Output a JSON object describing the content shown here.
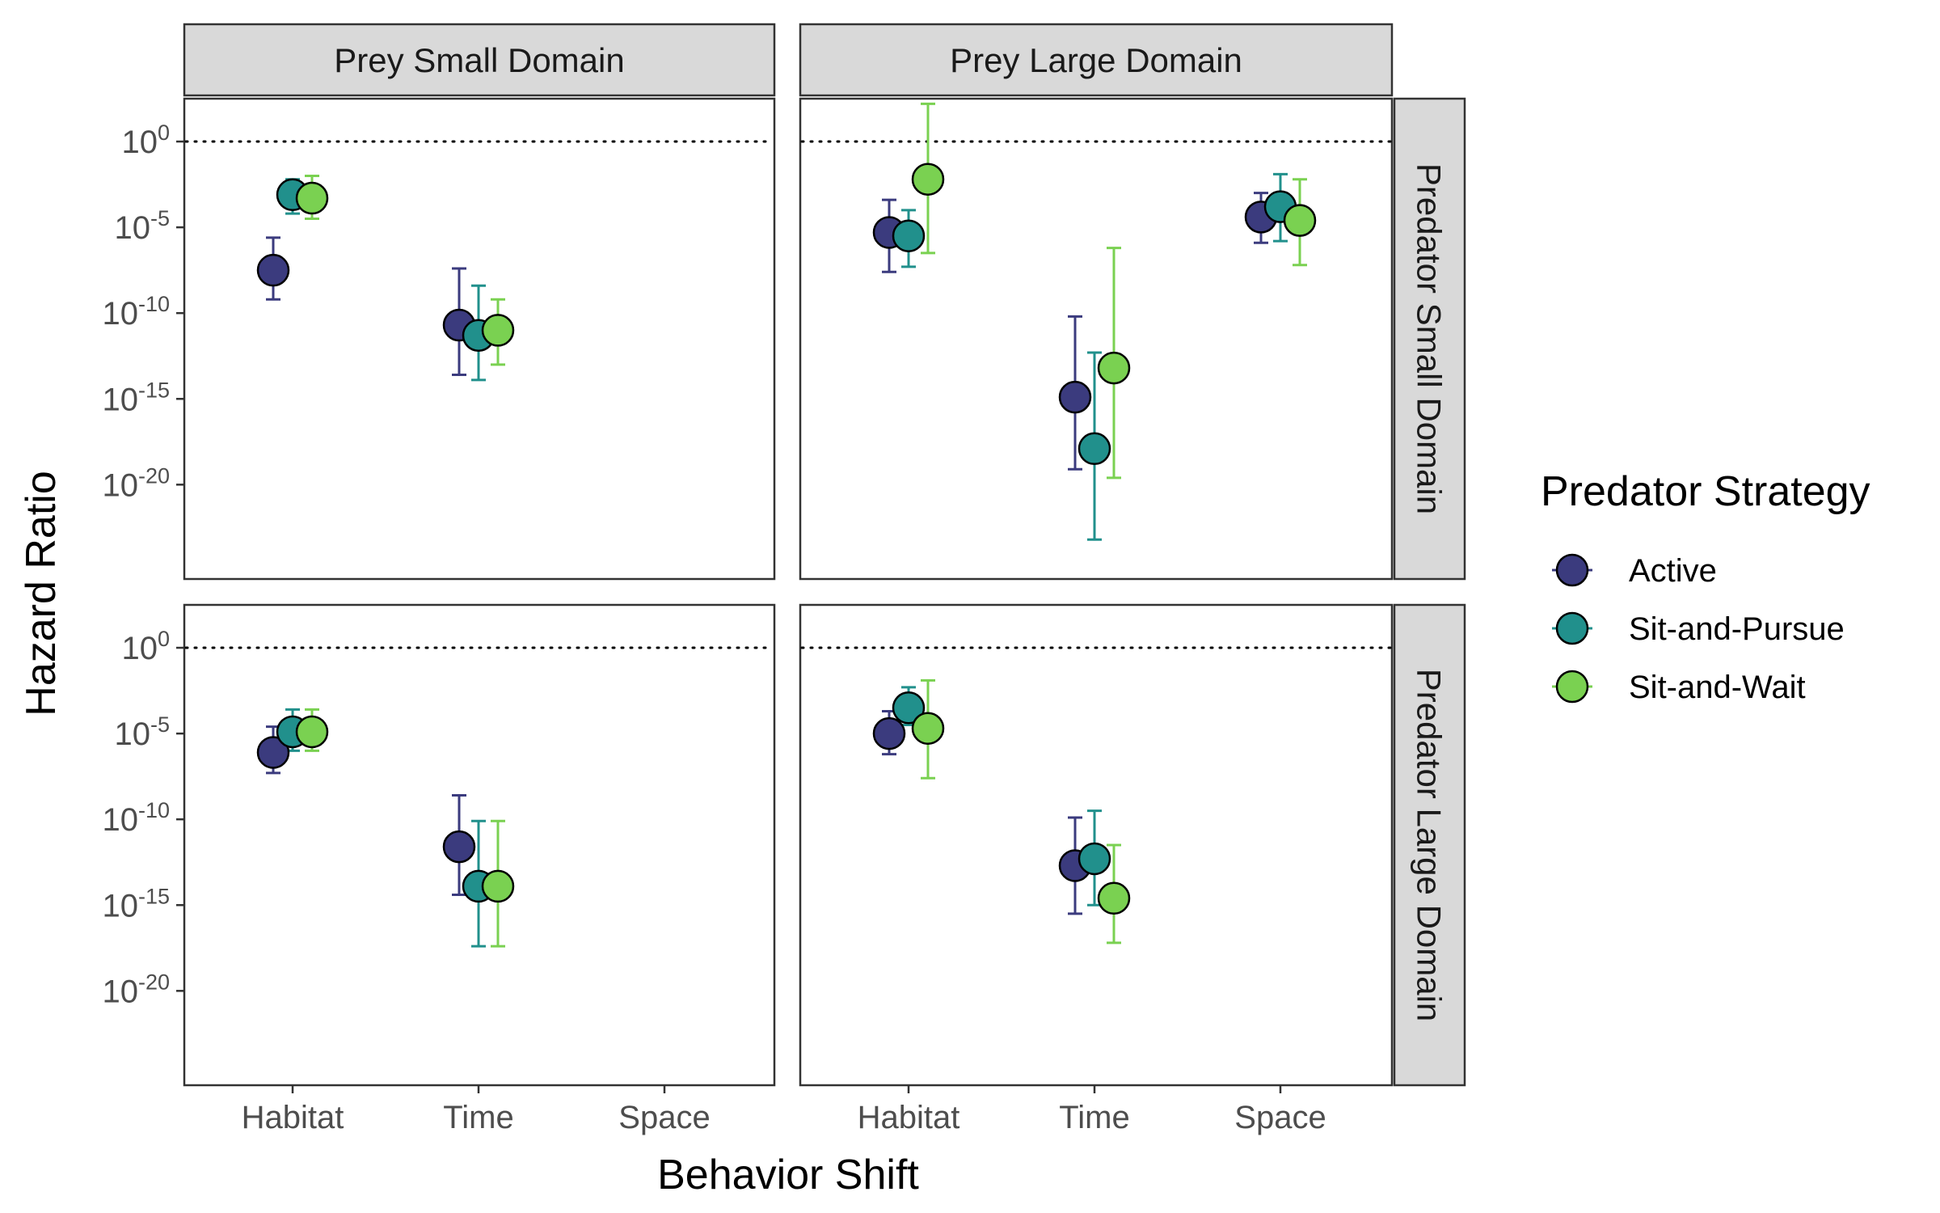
{
  "chart_data": {
    "type": "scatter",
    "subtype": "point-range, faceted grid",
    "xlabel": "Behavior Shift",
    "ylabel": "Hazard Ratio",
    "x_categories": [
      "Habitat",
      "Time",
      "Space"
    ],
    "y_scale": "log10",
    "y_ticks": [
      {
        "base": "10",
        "exp": "0"
      },
      {
        "base": "10",
        "exp": "-5"
      },
      {
        "base": "10",
        "exp": "-10"
      },
      {
        "base": "10",
        "exp": "-15"
      },
      {
        "base": "10",
        "exp": "-20"
      }
    ],
    "y_tick_values": [
      1,
      1e-05,
      1e-10,
      1e-15,
      1e-20
    ],
    "ylim_log10": [
      -25.5,
      2.5
    ],
    "reference_line": {
      "y": 1,
      "style": "dotted"
    },
    "col_facets": [
      "Prey Small Domain",
      "Prey Large Domain"
    ],
    "row_facets": [
      "Predator Small Domain",
      "Predator Large Domain"
    ],
    "legend": {
      "title": "Predator Strategy",
      "position": "right",
      "entries": [
        {
          "name": "Active",
          "color": "#3b3b7e"
        },
        {
          "name": "Sit-and-Pursue",
          "color": "#21908c"
        },
        {
          "name": "Sit-and-Wait",
          "color": "#7ad151"
        }
      ]
    },
    "panels": [
      {
        "row": "Predator Small Domain",
        "col": "Prey Small Domain",
        "points": [
          {
            "category": "Habitat",
            "series": "Active",
            "log10_y": -7.5,
            "log10_lo": -9.2,
            "log10_hi": -5.6
          },
          {
            "category": "Habitat",
            "series": "Sit-and-Pursue",
            "log10_y": -3.1,
            "log10_lo": -4.2,
            "log10_hi": -2.2
          },
          {
            "category": "Habitat",
            "series": "Sit-and-Wait",
            "log10_y": -3.3,
            "log10_lo": -4.5,
            "log10_hi": -2.0
          },
          {
            "category": "Time",
            "series": "Active",
            "log10_y": -10.7,
            "log10_lo": -13.6,
            "log10_hi": -7.4
          },
          {
            "category": "Time",
            "series": "Sit-and-Pursue",
            "log10_y": -11.3,
            "log10_lo": -13.9,
            "log10_hi": -8.4
          },
          {
            "category": "Time",
            "series": "Sit-and-Wait",
            "log10_y": -11.0,
            "log10_lo": -13.0,
            "log10_hi": -9.2
          }
        ]
      },
      {
        "row": "Predator Small Domain",
        "col": "Prey Large Domain",
        "points": [
          {
            "category": "Habitat",
            "series": "Active",
            "log10_y": -5.3,
            "log10_lo": -7.6,
            "log10_hi": -3.4
          },
          {
            "category": "Habitat",
            "series": "Sit-and-Pursue",
            "log10_y": -5.5,
            "log10_lo": -7.3,
            "log10_hi": -4.0
          },
          {
            "category": "Habitat",
            "series": "Sit-and-Wait",
            "log10_y": -2.2,
            "log10_lo": -6.5,
            "log10_hi": 2.2
          },
          {
            "category": "Time",
            "series": "Active",
            "log10_y": -14.9,
            "log10_lo": -19.1,
            "log10_hi": -10.2
          },
          {
            "category": "Time",
            "series": "Sit-and-Pursue",
            "log10_y": -17.9,
            "log10_lo": -23.2,
            "log10_hi": -12.3
          },
          {
            "category": "Time",
            "series": "Sit-and-Wait",
            "log10_y": -13.2,
            "log10_lo": -19.6,
            "log10_hi": -6.2
          },
          {
            "category": "Space",
            "series": "Active",
            "log10_y": -4.4,
            "log10_lo": -5.9,
            "log10_hi": -3.0
          },
          {
            "category": "Space",
            "series": "Sit-and-Pursue",
            "log10_y": -3.8,
            "log10_lo": -5.8,
            "log10_hi": -1.9
          },
          {
            "category": "Space",
            "series": "Sit-and-Wait",
            "log10_y": -4.6,
            "log10_lo": -7.2,
            "log10_hi": -2.2
          }
        ]
      },
      {
        "row": "Predator Large Domain",
        "col": "Prey Small Domain",
        "points": [
          {
            "category": "Habitat",
            "series": "Active",
            "log10_y": -6.1,
            "log10_lo": -7.3,
            "log10_hi": -4.6
          },
          {
            "category": "Habitat",
            "series": "Sit-and-Pursue",
            "log10_y": -4.9,
            "log10_lo": -6.0,
            "log10_hi": -3.6
          },
          {
            "category": "Habitat",
            "series": "Sit-and-Wait",
            "log10_y": -4.9,
            "log10_lo": -6.0,
            "log10_hi": -3.6
          },
          {
            "category": "Time",
            "series": "Active",
            "log10_y": -11.6,
            "log10_lo": -14.4,
            "log10_hi": -8.6
          },
          {
            "category": "Time",
            "series": "Sit-and-Pursue",
            "log10_y": -13.9,
            "log10_lo": -17.4,
            "log10_hi": -10.1
          },
          {
            "category": "Time",
            "series": "Sit-and-Wait",
            "log10_y": -13.9,
            "log10_lo": -17.4,
            "log10_hi": -10.1
          }
        ]
      },
      {
        "row": "Predator Large Domain",
        "col": "Prey Large Domain",
        "points": [
          {
            "category": "Habitat",
            "series": "Active",
            "log10_y": -5.0,
            "log10_lo": -6.2,
            "log10_hi": -3.7
          },
          {
            "category": "Habitat",
            "series": "Sit-and-Pursue",
            "log10_y": -3.5,
            "log10_lo": -4.5,
            "log10_hi": -2.3
          },
          {
            "category": "Habitat",
            "series": "Sit-and-Wait",
            "log10_y": -4.7,
            "log10_lo": -7.6,
            "log10_hi": -1.9
          },
          {
            "category": "Time",
            "series": "Active",
            "log10_y": -12.7,
            "log10_lo": -15.5,
            "log10_hi": -9.9
          },
          {
            "category": "Time",
            "series": "Sit-and-Pursue",
            "log10_y": -12.3,
            "log10_lo": -15.0,
            "log10_hi": -9.5
          },
          {
            "category": "Time",
            "series": "Sit-and-Wait",
            "log10_y": -14.6,
            "log10_lo": -17.2,
            "log10_hi": -11.5
          }
        ]
      }
    ]
  }
}
